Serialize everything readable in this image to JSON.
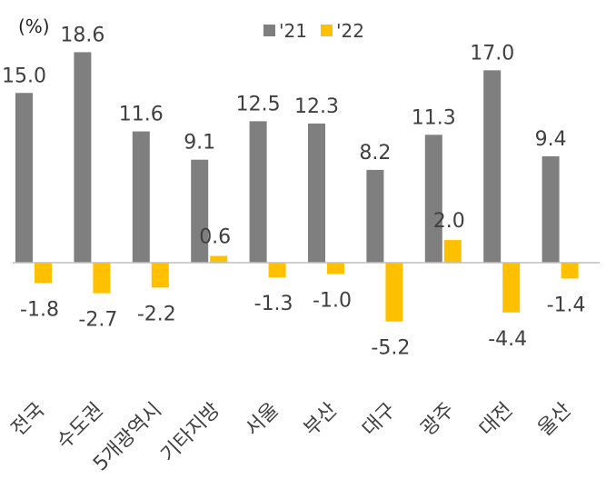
{
  "chart_data": {
    "type": "bar",
    "unit_label": "(%)",
    "categories": [
      "전국",
      "수도권",
      "5개광역시",
      "기타지방",
      "서울",
      "부산",
      "대구",
      "광주",
      "대전",
      "울산"
    ],
    "series": [
      {
        "name": "'21",
        "color": "#7f7f7f",
        "values": [
          15.0,
          18.6,
          11.6,
          9.1,
          12.5,
          12.3,
          8.2,
          11.3,
          17.0,
          9.4
        ],
        "labels": [
          "15.0",
          "18.6",
          "11.6",
          "9.1",
          "12.5",
          "12.3",
          "8.2",
          "11.3",
          "17.0",
          "9.4"
        ]
      },
      {
        "name": "'22",
        "color": "#ffc000",
        "values": [
          -1.8,
          -2.7,
          -2.2,
          0.6,
          -1.3,
          -1.0,
          -5.2,
          2.0,
          -4.4,
          -1.4
        ],
        "labels": [
          "-1.8",
          "-2.7",
          "-2.2",
          "0.6",
          "-1.3",
          "-1.0",
          "-5.2",
          "2.0",
          "-4.4",
          "-1.4"
        ]
      }
    ],
    "legend_position": "top",
    "grid": false
  }
}
